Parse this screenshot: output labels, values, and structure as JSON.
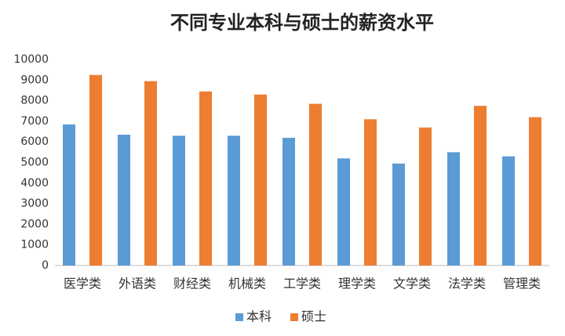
{
  "chart_data": {
    "type": "bar",
    "title": "不同专业本科与硕士的薪资水平",
    "categories": [
      "医学类",
      "外语类",
      "财经类",
      "机械类",
      "工学类",
      "理学类",
      "文学类",
      "法学类",
      "管理类"
    ],
    "series": [
      {
        "name": "本科",
        "color": "#5b9bd5",
        "values": [
          6850,
          6350,
          6300,
          6300,
          6200,
          5200,
          4950,
          5500,
          5300
        ]
      },
      {
        "name": "硕士",
        "color": "#ed7d31",
        "values": [
          9250,
          8950,
          8450,
          8300,
          7850,
          7100,
          6700,
          7750,
          7200
        ]
      }
    ],
    "ylim": [
      0,
      10000
    ],
    "yticks": [
      0,
      1000,
      2000,
      3000,
      4000,
      5000,
      6000,
      7000,
      8000,
      9000,
      10000
    ],
    "grid": false,
    "legend": "bottom"
  }
}
